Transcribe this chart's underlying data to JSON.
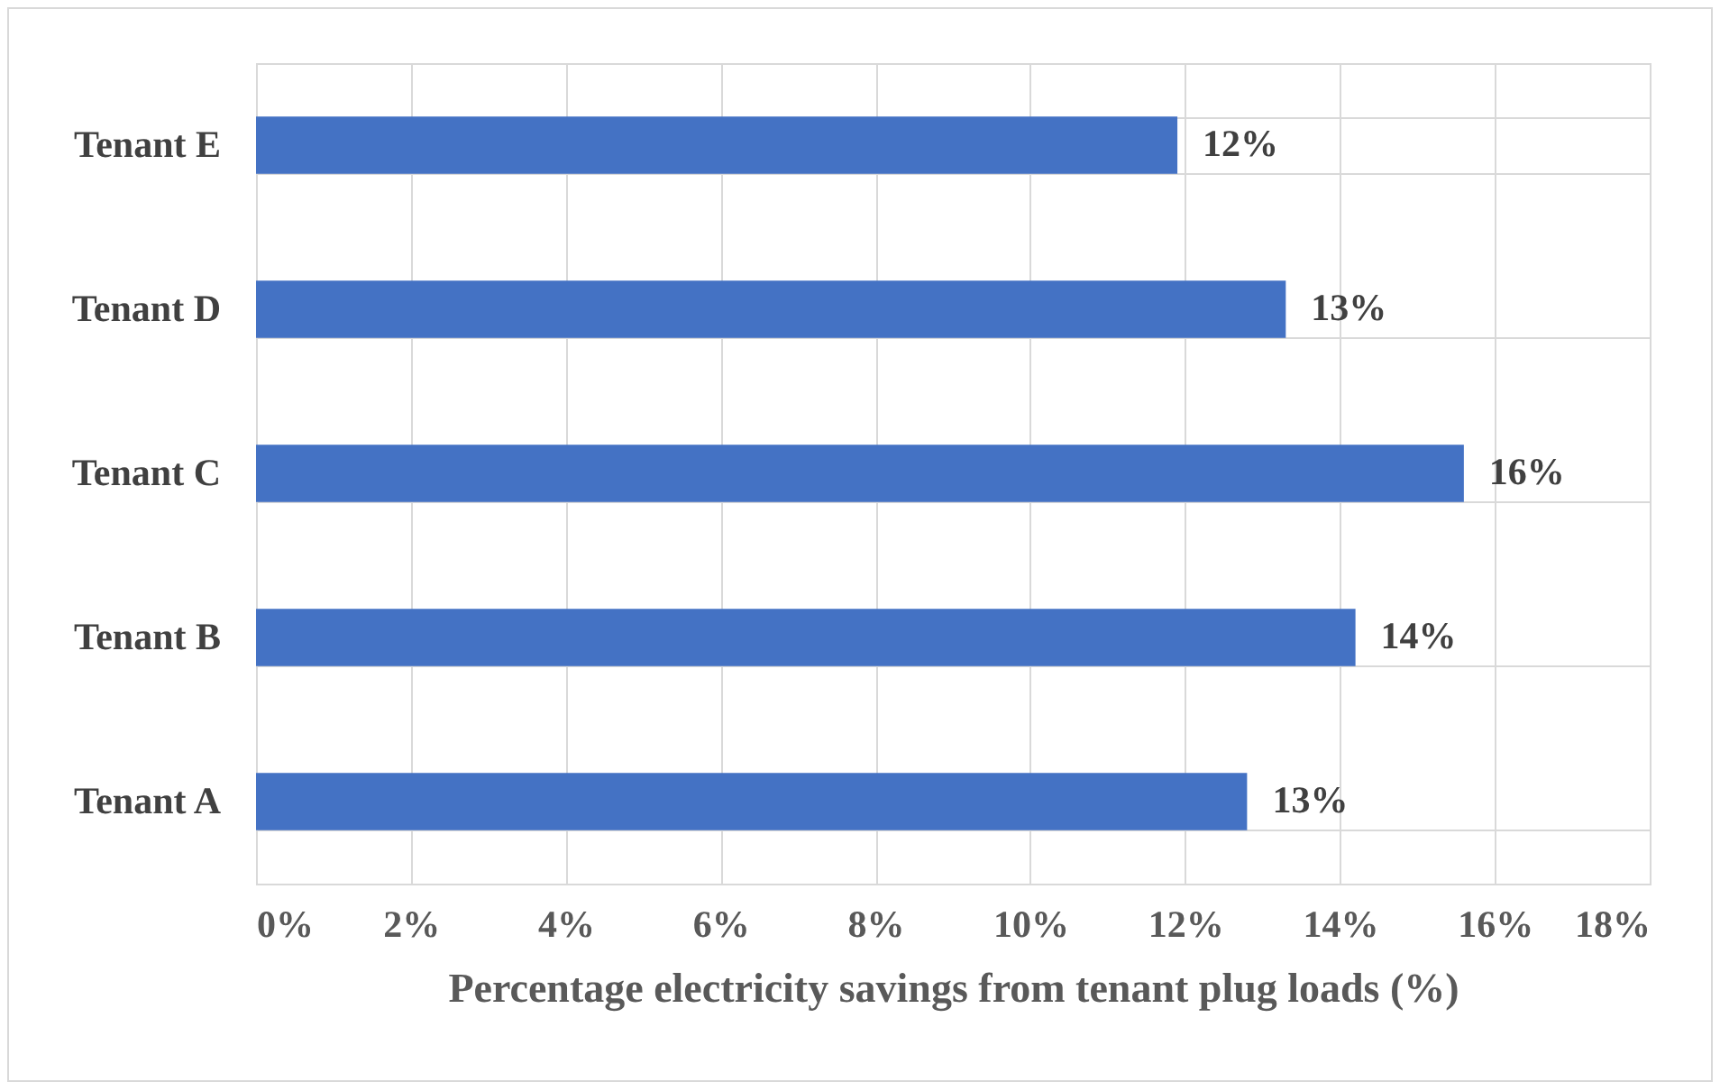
{
  "chart_data": {
    "type": "bar",
    "orientation": "horizontal",
    "xlabel": "Percentage electricity savings from tenant plug loads (%)",
    "categories": [
      "Tenant E",
      "Tenant D",
      "Tenant C",
      "Tenant B",
      "Tenant A"
    ],
    "values": [
      11.9,
      13.3,
      15.6,
      14.2,
      12.8
    ],
    "color": "#4472c4",
    "value_labels": [
      "12%",
      "13%",
      "16%",
      "14%",
      "13%"
    ],
    "xlim": [
      0,
      18
    ],
    "xticks": [
      {
        "value": 0,
        "label": "0%"
      },
      {
        "value": 2,
        "label": "2%"
      },
      {
        "value": 4,
        "label": "4%"
      },
      {
        "value": 6,
        "label": "6%"
      },
      {
        "value": 8,
        "label": "8%"
      },
      {
        "value": 10,
        "label": "10%"
      },
      {
        "value": 12,
        "label": "12%"
      },
      {
        "value": 14,
        "label": "14%"
      },
      {
        "value": 16,
        "label": "16%"
      },
      {
        "value": 18,
        "label": "18%"
      }
    ],
    "grid": true
  }
}
